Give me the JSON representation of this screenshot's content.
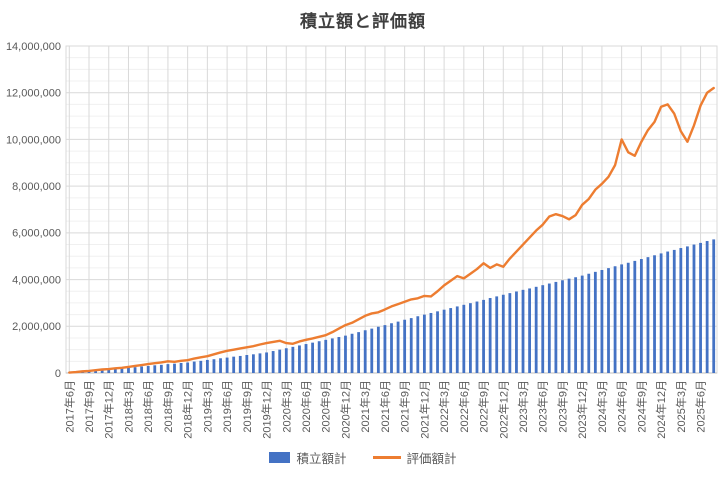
{
  "title": "積立額と評価額",
  "legend": {
    "items": [
      {
        "label": "積立額計",
        "type": "bar",
        "color": "#4472C4"
      },
      {
        "label": "評価額計",
        "type": "line",
        "color": "#ED7D31"
      }
    ]
  },
  "colors": {
    "bar": "#4472C4",
    "line": "#ED7D31",
    "title_text": "#3f3f3f",
    "axis_text": "#595959",
    "grid_major": "#D9D9D9",
    "grid_minor": "#F0F0F0",
    "plot_border": "#D9D9D9",
    "axis_line": "#BFBFBF",
    "background": "#FFFFFF"
  },
  "chart_data": {
    "type": "bar",
    "title": "積立額と評価額",
    "xlabel": "",
    "ylabel": "",
    "ylim": [
      0,
      14000000
    ],
    "y_major_unit": 2000000,
    "y_minor_unit": 500000,
    "grid": "horizontal major+minor, vertical major at quarterly ticks",
    "legend_position": "bottom",
    "y_tick_labels": [
      "0",
      "2,000,000",
      "4,000,000",
      "6,000,000",
      "8,000,000",
      "10,000,000",
      "12,000,000",
      "14,000,000"
    ],
    "x_tick_step": 3,
    "x_tick_labels": [
      "2017年6月",
      "2017年9月",
      "2017年12月",
      "2018年3月",
      "2018年6月",
      "2018年9月",
      "2018年12月",
      "2019年3月",
      "2019年6月",
      "2019年9月",
      "2019年12月",
      "2020年3月",
      "2020年6月",
      "2020年9月",
      "2020年12月",
      "2021年3月",
      "2021年6月",
      "2021年9月",
      "2021年12月",
      "2022年3月",
      "2022年6月",
      "2022年9月",
      "2022年12月",
      "2023年3月",
      "2023年6月",
      "2023年9月",
      "2023年12月",
      "2024年3月",
      "2024年6月",
      "2024年9月",
      "2024年12月",
      "2025年3月",
      "2025年6月"
    ],
    "categories": [
      "2017年6月",
      "2017年7月",
      "2017年8月",
      "2017年9月",
      "2017年10月",
      "2017年11月",
      "2017年12月",
      "2018年1月",
      "2018年2月",
      "2018年3月",
      "2018年4月",
      "2018年5月",
      "2018年6月",
      "2018年7月",
      "2018年8月",
      "2018年9月",
      "2018年10月",
      "2018年11月",
      "2018年12月",
      "2019年1月",
      "2019年2月",
      "2019年3月",
      "2019年4月",
      "2019年5月",
      "2019年6月",
      "2019年7月",
      "2019年8月",
      "2019年9月",
      "2019年10月",
      "2019年11月",
      "2019年12月",
      "2020年1月",
      "2020年2月",
      "2020年3月",
      "2020年4月",
      "2020年5月",
      "2020年6月",
      "2020年7月",
      "2020年8月",
      "2020年9月",
      "2020年10月",
      "2020年11月",
      "2020年12月",
      "2021年1月",
      "2021年2月",
      "2021年3月",
      "2021年4月",
      "2021年5月",
      "2021年6月",
      "2021年7月",
      "2021年8月",
      "2021年9月",
      "2021年10月",
      "2021年11月",
      "2021年12月",
      "2022年1月",
      "2022年2月",
      "2022年3月",
      "2022年4月",
      "2022年5月",
      "2022年6月",
      "2022年7月",
      "2022年8月",
      "2022年9月",
      "2022年10月",
      "2022年11月",
      "2022年12月",
      "2023年1月",
      "2023年2月",
      "2023年3月",
      "2023年4月",
      "2023年5月",
      "2023年6月",
      "2023年7月",
      "2023年8月",
      "2023年9月",
      "2023年10月",
      "2023年11月",
      "2023年12月",
      "2024年1月",
      "2024年2月",
      "2024年3月",
      "2024年4月",
      "2024年5月",
      "2024年6月",
      "2024年7月",
      "2024年8月",
      "2024年9月",
      "2024年10月",
      "2024年11月",
      "2024年12月",
      "2025年1月",
      "2025年2月",
      "2025年3月",
      "2025年4月",
      "2025年5月",
      "2025年6月",
      "2025年7月",
      "2025年8月"
    ],
    "series": [
      {
        "name": "積立額計",
        "type": "bar",
        "color": "#4472C4",
        "values": [
          20000,
          40000,
          60000,
          80000,
          100000,
          130000,
          150000,
          180000,
          200000,
          230000,
          250000,
          280000,
          300000,
          330000,
          350000,
          380000,
          400000,
          430000,
          450000,
          490000,
          520000,
          560000,
          590000,
          630000,
          660000,
          700000,
          730000,
          770000,
          800000,
          840000,
          880000,
          940000,
          1000000,
          1060000,
          1120000,
          1180000,
          1240000,
          1300000,
          1360000,
          1420000,
          1480000,
          1540000,
          1600000,
          1680000,
          1750000,
          1830000,
          1900000,
          1980000,
          2050000,
          2130000,
          2200000,
          2280000,
          2350000,
          2430000,
          2500000,
          2570000,
          2640000,
          2710000,
          2780000,
          2850000,
          2920000,
          2990000,
          3060000,
          3130000,
          3210000,
          3280000,
          3350000,
          3420000,
          3490000,
          3560000,
          3620000,
          3690000,
          3760000,
          3830000,
          3900000,
          3970000,
          4040000,
          4100000,
          4170000,
          4250000,
          4330000,
          4410000,
          4490000,
          4570000,
          4650000,
          4720000,
          4800000,
          4880000,
          4960000,
          5040000,
          5120000,
          5200000,
          5270000,
          5350000,
          5420000,
          5500000,
          5570000,
          5650000,
          5720000
        ]
      },
      {
        "name": "評価額計",
        "type": "line",
        "color": "#ED7D31",
        "values": [
          20000,
          40000,
          70000,
          90000,
          120000,
          150000,
          170000,
          200000,
          220000,
          260000,
          300000,
          340000,
          380000,
          420000,
          450000,
          500000,
          480000,
          520000,
          550000,
          620000,
          670000,
          720000,
          800000,
          880000,
          950000,
          1000000,
          1050000,
          1100000,
          1150000,
          1220000,
          1280000,
          1330000,
          1380000,
          1280000,
          1250000,
          1350000,
          1420000,
          1480000,
          1550000,
          1620000,
          1750000,
          1900000,
          2050000,
          2150000,
          2300000,
          2450000,
          2550000,
          2600000,
          2720000,
          2850000,
          2950000,
          3050000,
          3150000,
          3200000,
          3300000,
          3280000,
          3500000,
          3750000,
          3950000,
          4150000,
          4050000,
          4250000,
          4450000,
          4700000,
          4500000,
          4650000,
          4550000,
          4900000,
          5200000,
          5500000,
          5800000,
          6100000,
          6350000,
          6700000,
          6800000,
          6720000,
          6580000,
          6760000,
          7200000,
          7450000,
          7850000,
          8100000,
          8400000,
          8900000,
          10000000,
          9450000,
          9300000,
          9900000,
          10400000,
          10750000,
          11400000,
          11500000,
          11100000,
          10350000,
          9900000,
          10600000,
          11450000,
          12000000,
          12200000
        ]
      }
    ]
  }
}
